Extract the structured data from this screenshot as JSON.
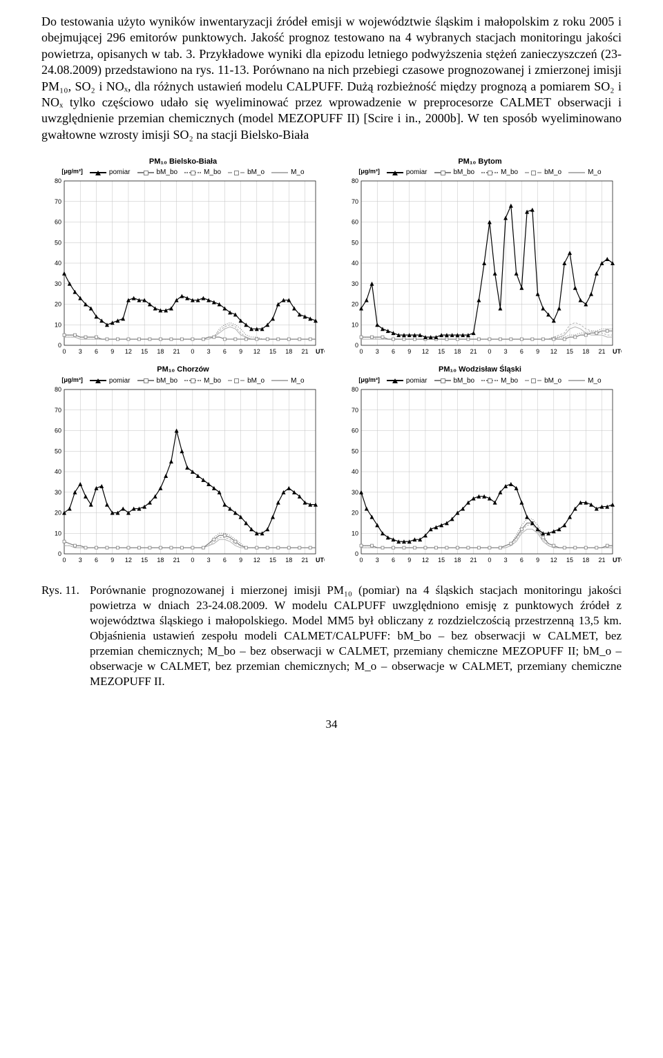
{
  "paragraph": "Do testowania użyto wyników inwentaryzacji źródeł emisji w województwie śląskim i małopolskim z roku 2005 i obejmującej 296 emitorów punktowych. Jakość prognoz testowano na 4 wybranych stacjach monitoringu jakości powietrza, opisanych w tab. 3. Przykładowe wyniki dla epizodu letniego podwyższenia stężeń zanieczyszczeń (23-24.08.2009) przedstawiono na rys. 11-13. Porównano na nich przebiegi czasowe prognozowanej i zmierzonej imisji PM₁₀, SO₂ i NOₓ, dla różnych ustawień modelu CALPUFF. Dużą rozbieżność między prognozą a pomiarem SO₂ i NOₓ tylko częściowo udało się wyeliminować przez wprowadzenie w preprocesorze CALMET obserwacji i uwzględnienie przemian chemicznych (model MEZOPUFF II) [Scire i in., 2000b]. W ten sposób wyeliminowano gwałtowne wzrosty imisji SO₂ na stacji Bielsko-Biała",
  "legend": {
    "pomiar": "pomiar",
    "bmbo": "bM_bo",
    "mbo": "M_bo",
    "bmo": "bM_o",
    "mo": "M_o"
  },
  "ylabel": "[μg/m³]",
  "axis": {
    "ylim": [
      0,
      80
    ],
    "ytick_step": 10,
    "x_ticks": [
      0,
      3,
      6,
      9,
      12,
      15,
      18,
      21,
      0,
      3,
      6,
      9,
      12,
      15,
      18,
      21
    ],
    "x_unit": "UTC"
  },
  "colors": {
    "pomiar": "#000000",
    "bmbo": "#808080",
    "mbo": "#808080",
    "bmo": "#b0b0b0",
    "mo": "#b0b0b0",
    "grid": "#c0c0c0",
    "background": "#ffffff"
  },
  "fontsizes": {
    "title": 11,
    "legend": 10,
    "axis": 9
  },
  "charts": [
    {
      "title": "PM₁₀ Bielsko-Biała",
      "series": {
        "pomiar": [
          35,
          30,
          26,
          23,
          20,
          18,
          14,
          12,
          10,
          11,
          12,
          13,
          22,
          23,
          22,
          22,
          20,
          18,
          17,
          17,
          18,
          22,
          24,
          23,
          22,
          22,
          23,
          22,
          21,
          20,
          18,
          16,
          15,
          12,
          10,
          8,
          8,
          8,
          10,
          13,
          20,
          22,
          22,
          18,
          15,
          14,
          13,
          12
        ],
        "bmbo": [
          5,
          5,
          5,
          4,
          4,
          4,
          4,
          3,
          3,
          3,
          3,
          3,
          3,
          3,
          3,
          3,
          3,
          3,
          3,
          3,
          3,
          3,
          3,
          3,
          3,
          3,
          3,
          4,
          4,
          4,
          3,
          3,
          3,
          3,
          3,
          3,
          3,
          3,
          3,
          3,
          3,
          3,
          3,
          3,
          3,
          3,
          3,
          3
        ],
        "mbo": [
          5,
          5,
          5,
          4,
          4,
          4,
          4,
          3,
          3,
          3,
          3,
          3,
          3,
          3,
          3,
          3,
          3,
          3,
          3,
          3,
          3,
          3,
          3,
          3,
          3,
          3,
          3,
          4,
          4,
          8,
          10,
          11,
          10,
          8,
          5,
          4,
          4,
          3,
          3,
          3,
          3,
          3,
          3,
          3,
          3,
          3,
          3,
          3
        ],
        "bmo": [
          4,
          4,
          4,
          3,
          3,
          3,
          3,
          3,
          3,
          3,
          3,
          3,
          3,
          3,
          3,
          3,
          3,
          3,
          3,
          3,
          3,
          3,
          3,
          3,
          3,
          3,
          3,
          3,
          4,
          7,
          9,
          10,
          9,
          6,
          4,
          3,
          3,
          3,
          3,
          3,
          3,
          3,
          3,
          3,
          3,
          3,
          3,
          3
        ],
        "mo": [
          4,
          4,
          4,
          3,
          3,
          3,
          3,
          3,
          3,
          3,
          3,
          3,
          3,
          3,
          3,
          3,
          3,
          3,
          3,
          3,
          3,
          3,
          3,
          3,
          3,
          3,
          3,
          3,
          4,
          6,
          8,
          9,
          8,
          5,
          4,
          3,
          3,
          3,
          3,
          3,
          3,
          3,
          3,
          3,
          3,
          3,
          3,
          3
        ]
      }
    },
    {
      "title": "PM₁₀ Bytom",
      "series": {
        "pomiar": [
          18,
          22,
          30,
          10,
          8,
          7,
          6,
          5,
          5,
          5,
          5,
          5,
          4,
          4,
          4,
          5,
          5,
          5,
          5,
          5,
          5,
          6,
          22,
          40,
          60,
          35,
          18,
          62,
          68,
          35,
          28,
          65,
          66,
          25,
          18,
          15,
          12,
          18,
          40,
          45,
          28,
          22,
          20,
          25,
          35,
          40,
          42,
          40
        ],
        "bmbo": [
          4,
          4,
          4,
          4,
          4,
          3,
          3,
          3,
          3,
          3,
          3,
          3,
          3,
          3,
          3,
          3,
          3,
          3,
          3,
          3,
          3,
          3,
          3,
          3,
          3,
          3,
          3,
          3,
          3,
          3,
          3,
          3,
          3,
          3,
          3,
          3,
          3,
          3,
          3,
          4,
          4,
          5,
          5,
          6,
          6,
          7,
          7,
          7
        ],
        "mbo": [
          4,
          4,
          4,
          4,
          4,
          3,
          3,
          3,
          3,
          3,
          3,
          3,
          3,
          3,
          3,
          3,
          3,
          3,
          3,
          3,
          3,
          3,
          3,
          3,
          3,
          3,
          3,
          3,
          3,
          3,
          3,
          3,
          3,
          3,
          3,
          3,
          4,
          4,
          4,
          5,
          5,
          6,
          6,
          7,
          7,
          8,
          8,
          8
        ],
        "bmo": [
          4,
          4,
          4,
          3,
          3,
          3,
          3,
          3,
          3,
          3,
          3,
          3,
          3,
          3,
          3,
          3,
          3,
          3,
          3,
          3,
          3,
          3,
          3,
          3,
          3,
          3,
          3,
          3,
          3,
          3,
          3,
          3,
          3,
          3,
          3,
          3,
          4,
          5,
          6,
          10,
          11,
          10,
          8,
          7,
          6,
          6,
          5,
          5
        ],
        "mo": [
          3,
          3,
          3,
          3,
          3,
          3,
          3,
          3,
          3,
          3,
          3,
          3,
          3,
          3,
          3,
          3,
          3,
          3,
          3,
          3,
          3,
          3,
          3,
          3,
          3,
          3,
          3,
          3,
          3,
          3,
          3,
          3,
          3,
          3,
          3,
          3,
          3,
          4,
          5,
          8,
          9,
          8,
          6,
          5,
          5,
          5,
          4,
          4
        ]
      }
    },
    {
      "title": "PM₁₀ Chorzów",
      "series": {
        "pomiar": [
          20,
          22,
          30,
          34,
          28,
          24,
          32,
          33,
          24,
          20,
          20,
          22,
          20,
          22,
          22,
          23,
          25,
          28,
          32,
          38,
          45,
          60,
          50,
          42,
          40,
          38,
          36,
          34,
          32,
          30,
          24,
          22,
          20,
          18,
          15,
          12,
          10,
          10,
          12,
          18,
          25,
          30,
          32,
          30,
          28,
          25,
          24,
          24
        ],
        "bmbo": [
          6,
          5,
          4,
          4,
          3,
          3,
          3,
          3,
          3,
          3,
          3,
          3,
          3,
          3,
          3,
          3,
          3,
          3,
          3,
          3,
          3,
          3,
          3,
          3,
          3,
          3,
          3,
          5,
          7,
          9,
          9,
          8,
          6,
          4,
          3,
          3,
          3,
          3,
          3,
          3,
          3,
          3,
          3,
          3,
          3,
          3,
          3,
          3
        ],
        "mbo": [
          6,
          5,
          4,
          4,
          3,
          3,
          3,
          3,
          3,
          3,
          3,
          3,
          3,
          3,
          3,
          3,
          3,
          3,
          3,
          3,
          3,
          3,
          3,
          3,
          3,
          3,
          3,
          5,
          8,
          10,
          10,
          9,
          7,
          5,
          3,
          3,
          3,
          3,
          3,
          3,
          3,
          3,
          3,
          3,
          3,
          3,
          3,
          3
        ],
        "bmo": [
          4,
          4,
          3,
          3,
          3,
          3,
          3,
          3,
          3,
          3,
          3,
          3,
          3,
          3,
          3,
          3,
          3,
          3,
          3,
          3,
          3,
          3,
          3,
          3,
          3,
          3,
          3,
          4,
          6,
          8,
          8,
          7,
          5,
          4,
          3,
          3,
          3,
          3,
          3,
          3,
          3,
          3,
          3,
          3,
          3,
          3,
          3,
          3
        ],
        "mo": [
          4,
          4,
          3,
          3,
          3,
          3,
          3,
          3,
          3,
          3,
          3,
          3,
          3,
          3,
          3,
          3,
          3,
          3,
          3,
          3,
          3,
          3,
          3,
          3,
          3,
          3,
          3,
          4,
          5,
          7,
          7,
          6,
          4,
          3,
          3,
          3,
          3,
          3,
          3,
          3,
          3,
          3,
          3,
          3,
          3,
          3,
          3,
          3
        ]
      }
    },
    {
      "title": "PM₁₀ Wodzisław Śląski",
      "series": {
        "pomiar": [
          30,
          22,
          18,
          14,
          10,
          8,
          7,
          6,
          6,
          6,
          7,
          7,
          9,
          12,
          13,
          14,
          15,
          17,
          20,
          22,
          25,
          27,
          28,
          28,
          27,
          25,
          30,
          33,
          34,
          32,
          25,
          18,
          15,
          12,
          10,
          10,
          11,
          12,
          14,
          18,
          22,
          25,
          25,
          24,
          22,
          23,
          23,
          24
        ],
        "bmbo": [
          4,
          4,
          4,
          3,
          3,
          3,
          3,
          3,
          3,
          3,
          3,
          3,
          3,
          3,
          3,
          3,
          3,
          3,
          3,
          3,
          3,
          3,
          3,
          3,
          3,
          3,
          3,
          4,
          5,
          8,
          12,
          15,
          15,
          12,
          8,
          5,
          4,
          3,
          3,
          3,
          3,
          3,
          3,
          3,
          3,
          3,
          4,
          4
        ],
        "mbo": [
          4,
          4,
          4,
          3,
          3,
          3,
          3,
          3,
          3,
          3,
          3,
          3,
          3,
          3,
          3,
          3,
          3,
          3,
          3,
          3,
          3,
          3,
          3,
          3,
          3,
          3,
          3,
          4,
          5,
          9,
          14,
          17,
          17,
          14,
          9,
          5,
          4,
          3,
          3,
          3,
          3,
          3,
          3,
          3,
          3,
          3,
          4,
          4
        ],
        "bmo": [
          3,
          3,
          3,
          3,
          3,
          3,
          3,
          3,
          3,
          3,
          3,
          3,
          3,
          3,
          3,
          3,
          3,
          3,
          3,
          3,
          3,
          3,
          3,
          3,
          3,
          3,
          3,
          3,
          4,
          7,
          11,
          14,
          14,
          11,
          7,
          4,
          3,
          3,
          3,
          3,
          3,
          3,
          3,
          3,
          3,
          3,
          3,
          3
        ],
        "mo": [
          3,
          3,
          3,
          3,
          3,
          3,
          3,
          3,
          3,
          3,
          3,
          3,
          3,
          3,
          3,
          3,
          3,
          3,
          3,
          3,
          3,
          3,
          3,
          3,
          3,
          3,
          3,
          3,
          4,
          6,
          10,
          12,
          12,
          10,
          6,
          4,
          3,
          3,
          3,
          3,
          3,
          3,
          3,
          3,
          3,
          3,
          3,
          3
        ]
      }
    }
  ],
  "caption": {
    "label": "Rys. 11.",
    "text": "Porównanie prognozowanej i mierzonej imisji PM₁₀ (pomiar) na 4 śląskich stacjach monitoringu jakości powietrza w dniach 23-24.08.2009. W modelu CALPUFF uwzględniono emisję z punktowych źródeł z województwa śląskiego i małopolskiego. Model MM5 był obliczany z rozdzielczością przestrzenną 13,5 km. Objaśnienia ustawień zespołu modeli CALMET/CALPUFF: bM_bo – bez obserwacji w CALMET, bez przemian chemicznych; M_bo – bez obserwacji w CALMET, przemiany chemiczne MEZOPUFF II; bM_o – obserwacje w CALMET, bez przemian chemicznych; M_o – obserwacje w CALMET, przemiany chemiczne MEZOPUFF II."
  },
  "page": "34"
}
